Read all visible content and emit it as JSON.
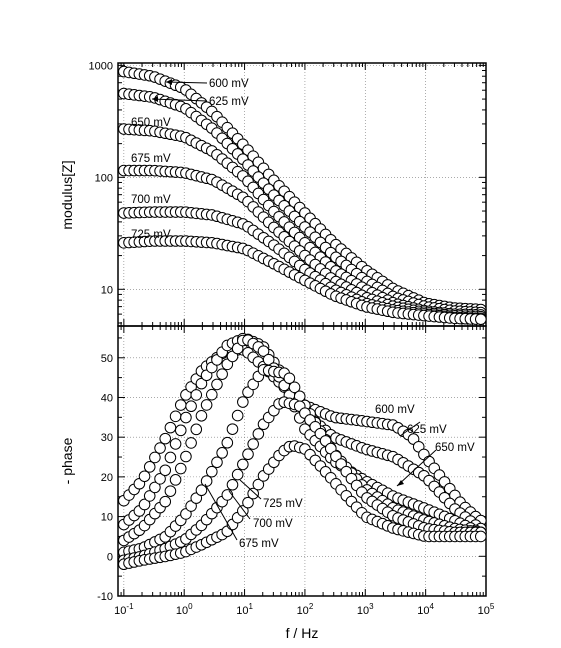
{
  "chart_data": [
    {
      "type": "scatter",
      "panel": "top",
      "ylabel": "modulus[Z]",
      "yscale": "log",
      "xscale": "log",
      "xlim": [
        0.08,
        100000
      ],
      "ylim": [
        4.7,
        1050
      ],
      "yticks": [
        {
          "value": 10,
          "label": "10"
        },
        {
          "value": 100,
          "label": "100"
        },
        {
          "value": 1000,
          "label": "1000"
        }
      ],
      "series": [
        {
          "name": "600 mV",
          "points": [
            [
              0.1,
              880
            ],
            [
              0.3,
              800
            ],
            [
              1,
              620
            ],
            [
              3,
              380
            ],
            [
              10,
              190
            ],
            [
              30,
              95
            ],
            [
              100,
              48
            ],
            [
              300,
              26
            ],
            [
              1000,
              15
            ],
            [
              3000,
              10
            ],
            [
              10000,
              7.5
            ],
            [
              30000,
              6.8
            ],
            [
              80000,
              6.6
            ]
          ]
        },
        {
          "name": "625 mV",
          "points": [
            [
              0.1,
              560
            ],
            [
              0.3,
              520
            ],
            [
              1,
              420
            ],
            [
              3,
              270
            ],
            [
              10,
              140
            ],
            [
              30,
              70
            ],
            [
              100,
              36
            ],
            [
              300,
              20
            ],
            [
              1000,
              12
            ],
            [
              3000,
              8.5
            ],
            [
              10000,
              7
            ],
            [
              30000,
              6.4
            ],
            [
              80000,
              6.2
            ]
          ]
        },
        {
          "name": "650 mV",
          "points": [
            [
              0.1,
              270
            ],
            [
              0.3,
              260
            ],
            [
              1,
              230
            ],
            [
              3,
              170
            ],
            [
              10,
              100
            ],
            [
              30,
              50
            ],
            [
              100,
              26
            ],
            [
              300,
              15
            ],
            [
              1000,
              10
            ],
            [
              3000,
              7.5
            ],
            [
              10000,
              6.4
            ],
            [
              30000,
              6
            ],
            [
              80000,
              5.9
            ]
          ]
        },
        {
          "name": "675 mV",
          "points": [
            [
              0.1,
              115
            ],
            [
              0.3,
              115
            ],
            [
              1,
              110
            ],
            [
              3,
              95
            ],
            [
              10,
              65
            ],
            [
              30,
              36
            ],
            [
              100,
              20
            ],
            [
              300,
              12
            ],
            [
              1000,
              8.5
            ],
            [
              3000,
              7
            ],
            [
              10000,
              6.2
            ],
            [
              30000,
              5.8
            ],
            [
              80000,
              5.7
            ]
          ]
        },
        {
          "name": "700 mV",
          "points": [
            [
              0.1,
              48
            ],
            [
              0.3,
              49
            ],
            [
              1,
              49
            ],
            [
              3,
              46
            ],
            [
              10,
              38
            ],
            [
              30,
              25
            ],
            [
              100,
              15
            ],
            [
              300,
              10
            ],
            [
              1000,
              7.5
            ],
            [
              3000,
              6.5
            ],
            [
              10000,
              6
            ],
            [
              30000,
              5.6
            ],
            [
              80000,
              5.5
            ]
          ]
        },
        {
          "name": "725 mV",
          "points": [
            [
              0.1,
              26
            ],
            [
              0.3,
              27
            ],
            [
              1,
              27
            ],
            [
              3,
              26
            ],
            [
              10,
              23
            ],
            [
              30,
              17
            ],
            [
              100,
              12
            ],
            [
              300,
              8.8
            ],
            [
              1000,
              7
            ],
            [
              3000,
              6.2
            ],
            [
              10000,
              5.8
            ],
            [
              30000,
              5.5
            ],
            [
              80000,
              5.4
            ]
          ]
        }
      ],
      "annotations": [
        "600 mV",
        "625 mV",
        "650 mV",
        "675 mV",
        "700 mV",
        "725 mV"
      ]
    },
    {
      "type": "scatter",
      "panel": "bottom",
      "xlabel": "f / Hz",
      "ylabel": "- phase",
      "xscale": "log",
      "xlim": [
        0.08,
        100000
      ],
      "ylim": [
        -10,
        58
      ],
      "xticks": [
        {
          "value": 0.1,
          "label": "10-1",
          "base": "10",
          "exp": "-1"
        },
        {
          "value": 1,
          "label": "10⁰",
          "base": "10",
          "exp": "0"
        },
        {
          "value": 10,
          "label": "10¹",
          "base": "10",
          "exp": "1"
        },
        {
          "value": 100,
          "label": "10²",
          "base": "10",
          "exp": "2"
        },
        {
          "value": 1000,
          "label": "10³",
          "base": "10",
          "exp": "3"
        },
        {
          "value": 10000,
          "label": "10⁴",
          "base": "10",
          "exp": "4"
        },
        {
          "value": 100000,
          "label": "10⁵",
          "base": "10",
          "exp": "5"
        }
      ],
      "yticks": [
        {
          "value": -10,
          "label": "-10"
        },
        {
          "value": 0,
          "label": "0"
        },
        {
          "value": 10,
          "label": "10"
        },
        {
          "value": 20,
          "label": "20"
        },
        {
          "value": 30,
          "label": "30"
        },
        {
          "value": 40,
          "label": "40"
        },
        {
          "value": 50,
          "label": "50"
        }
      ],
      "series": [
        {
          "name": "600 mV",
          "points": [
            [
              0.1,
              14
            ],
            [
              0.2,
              19
            ],
            [
              0.5,
              30
            ],
            [
              1,
              40
            ],
            [
              2,
              47
            ],
            [
              5,
              52
            ],
            [
              10,
              52
            ],
            [
              20,
              48
            ],
            [
              50,
              42
            ],
            [
              100,
              38
            ],
            [
              300,
              35
            ],
            [
              1000,
              34
            ],
            [
              3000,
              33
            ],
            [
              6000,
              30
            ],
            [
              10000,
              25
            ],
            [
              20000,
              19
            ],
            [
              40000,
              13
            ],
            [
              80000,
              9
            ]
          ]
        },
        {
          "name": "625 mV",
          "points": [
            [
              0.1,
              8
            ],
            [
              0.2,
              12
            ],
            [
              0.5,
              22
            ],
            [
              1,
              34
            ],
            [
              2,
              44
            ],
            [
              5,
              53
            ],
            [
              10,
              55
            ],
            [
              20,
              53
            ],
            [
              50,
              44
            ],
            [
              100,
              36
            ],
            [
              300,
              30
            ],
            [
              1000,
              27
            ],
            [
              3000,
              25
            ],
            [
              10000,
              20
            ],
            [
              30000,
              12
            ],
            [
              80000,
              7
            ]
          ]
        },
        {
          "name": "650 mV",
          "points": [
            [
              0.1,
              4
            ],
            [
              0.2,
              7
            ],
            [
              0.5,
              14
            ],
            [
              1,
              24
            ],
            [
              2,
              36
            ],
            [
              5,
              48
            ],
            [
              10,
              55
            ],
            [
              20,
              52
            ],
            [
              50,
              42
            ],
            [
              100,
              32
            ],
            [
              300,
              24
            ],
            [
              1000,
              19
            ],
            [
              3000,
              15
            ],
            [
              10000,
              12
            ],
            [
              30000,
              9
            ],
            [
              80000,
              6
            ]
          ]
        },
        {
          "name": "675 mV",
          "points": [
            [
              0.1,
              1
            ],
            [
              0.2,
              2
            ],
            [
              0.5,
              5
            ],
            [
              1,
              10
            ],
            [
              2,
              17
            ],
            [
              5,
              28
            ],
            [
              10,
              40
            ],
            [
              20,
              47
            ],
            [
              50,
              46
            ],
            [
              100,
              38
            ],
            [
              300,
              26
            ],
            [
              1000,
              17
            ],
            [
              3000,
              12
            ],
            [
              10000,
              9
            ],
            [
              30000,
              7
            ],
            [
              80000,
              6
            ]
          ]
        },
        {
          "name": "700 mV",
          "points": [
            [
              0.1,
              -1
            ],
            [
              0.2,
              0
            ],
            [
              0.5,
              2
            ],
            [
              1,
              4
            ],
            [
              2,
              8
            ],
            [
              5,
              15
            ],
            [
              10,
              24
            ],
            [
              20,
              33
            ],
            [
              40,
              39
            ],
            [
              80,
              38
            ],
            [
              200,
              30
            ],
            [
              500,
              21
            ],
            [
              1000,
              15
            ],
            [
              3000,
              10
            ],
            [
              10000,
              7
            ],
            [
              30000,
              6
            ],
            [
              80000,
              6
            ]
          ]
        },
        {
          "name": "725 mV",
          "points": [
            [
              0.1,
              -2
            ],
            [
              0.2,
              -1
            ],
            [
              0.5,
              0
            ],
            [
              1,
              1
            ],
            [
              2,
              3
            ],
            [
              5,
              6
            ],
            [
              10,
              12
            ],
            [
              20,
              20
            ],
            [
              40,
              26
            ],
            [
              60,
              28
            ],
            [
              100,
              27
            ],
            [
              200,
              22
            ],
            [
              500,
              15
            ],
            [
              1000,
              10
            ],
            [
              3000,
              7
            ],
            [
              10000,
              5
            ],
            [
              30000,
              5
            ],
            [
              80000,
              5
            ]
          ]
        }
      ],
      "annotations": [
        "600 mV",
        "625 mV",
        "650 mV",
        "725 mV",
        "700 mV",
        "675 mV"
      ]
    }
  ]
}
